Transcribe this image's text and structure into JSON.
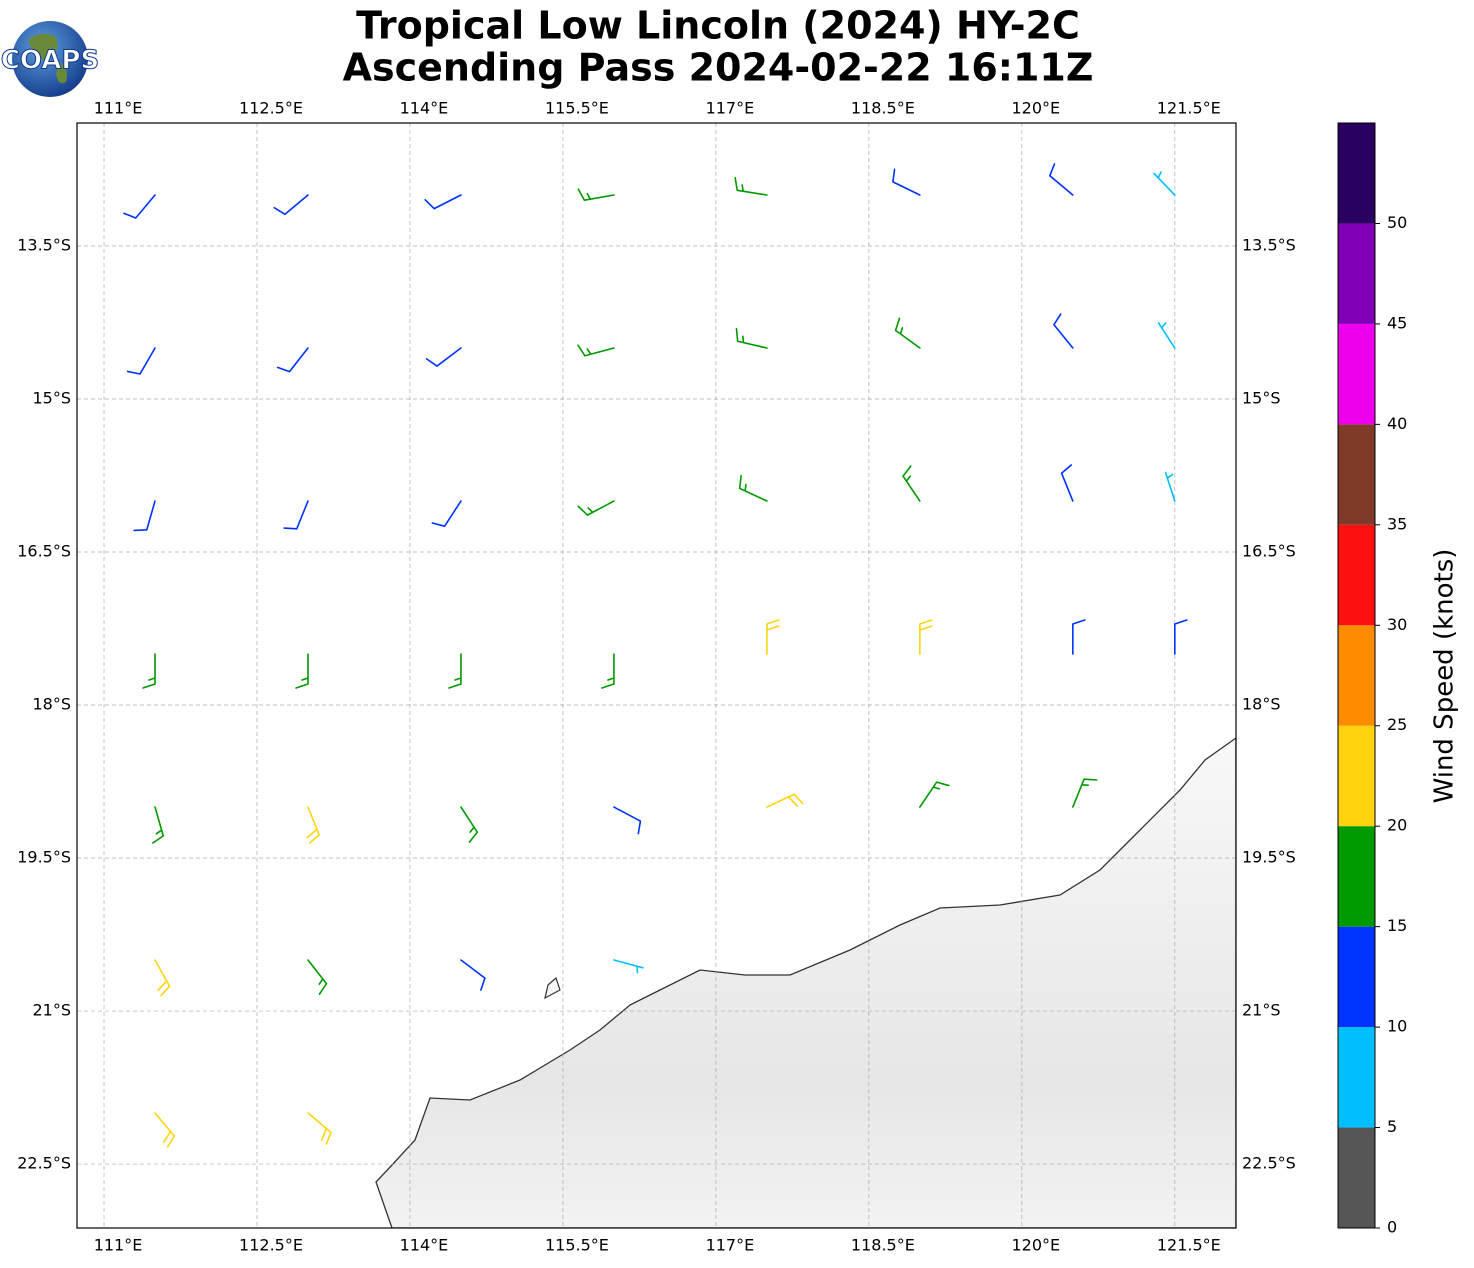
{
  "chart_data": {
    "type": "barbs",
    "title": "Tropical Low Lincoln (2024) HY-2C",
    "subtitle": "Ascending Pass 2024-02-22 16:11Z",
    "logo_text": "COAPS",
    "xlim": [
      110.735,
      122.1
    ],
    "ylim": [
      -23.127,
      -12.294
    ],
    "xticks": [
      {
        "value": 111,
        "label": "111°E"
      },
      {
        "value": 112.5,
        "label": "112.5°E"
      },
      {
        "value": 114,
        "label": "114°E"
      },
      {
        "value": 115.5,
        "label": "115.5°E"
      },
      {
        "value": 117,
        "label": "117°E"
      },
      {
        "value": 118.5,
        "label": "118.5°E"
      },
      {
        "value": 120,
        "label": "120°E"
      },
      {
        "value": 121.5,
        "label": "121.5°E"
      }
    ],
    "yticks": [
      {
        "value": -13.5,
        "label": "13.5°S"
      },
      {
        "value": -15,
        "label": "15°S"
      },
      {
        "value": -16.5,
        "label": "16.5°S"
      },
      {
        "value": -18,
        "label": "18°S"
      },
      {
        "value": -19.5,
        "label": "19.5°S"
      },
      {
        "value": -21,
        "label": "21°S"
      },
      {
        "value": -22.5,
        "label": "22.5°S"
      }
    ],
    "grid": true,
    "lon": [
      111.5,
      113,
      114.5,
      116,
      117.5,
      119,
      120.5,
      121.5,
      111.5,
      113,
      114.5,
      116,
      117.5,
      119,
      120.5,
      121.5,
      111.5,
      113,
      114.5,
      116,
      117.5,
      119,
      120.5,
      121.5,
      111.5,
      113,
      114.5,
      116,
      117.5,
      119,
      120.5,
      121.5,
      111.5,
      113,
      114.5,
      116,
      117.5,
      119,
      120.5,
      111.5,
      113,
      114.5,
      116,
      111.5,
      113
    ],
    "lat": [
      -13,
      -13,
      -13,
      -13,
      -13,
      -13,
      -13,
      -13,
      -14.5,
      -14.5,
      -14.5,
      -14.5,
      -14.5,
      -14.5,
      -14.5,
      -14.5,
      -16,
      -16,
      -16,
      -16,
      -16,
      -16,
      -16,
      -16,
      -17.5,
      -17.5,
      -17.5,
      -17.5,
      -17.5,
      -17.5,
      -17.5,
      -17.5,
      -19,
      -19,
      -19,
      -19,
      -19,
      -19,
      -19,
      -20.5,
      -20.5,
      -20.5,
      -20.5,
      -22,
      -22
    ],
    "speed": [
      10,
      12,
      13,
      16,
      17,
      14,
      13,
      9,
      12,
      13,
      14,
      17,
      17,
      16,
      12,
      8,
      13,
      13,
      13,
      16,
      18,
      16,
      13,
      9,
      16,
      15,
      16,
      18,
      22,
      20,
      14,
      12,
      17,
      20,
      15,
      13,
      22,
      18,
      16,
      22,
      17,
      14,
      8,
      23,
      21
    ],
    "direction": [
      220,
      230,
      243,
      260,
      279,
      296,
      310,
      316,
      210,
      218,
      233,
      255,
      283,
      306,
      321,
      327,
      196,
      202,
      213,
      242,
      295,
      326,
      338,
      342,
      180,
      180,
      180,
      180,
      0,
      0,
      0,
      0,
      164,
      158,
      147,
      118,
      65,
      34,
      22,
      151,
      142,
      127,
      105,
      140,
      130
    ],
    "colorbar": {
      "label": "Wind Speed (knots)",
      "ylim": [
        0,
        55
      ],
      "yticks": [
        0,
        5,
        10,
        15,
        20,
        25,
        30,
        35,
        40,
        45,
        50
      ],
      "colors": [
        "#555555",
        "#00bfff",
        "#0033ff",
        "#009900",
        "#ffd40f",
        "#ff8c00",
        "#ff1010",
        "#7f3a2a",
        "#ee00ee",
        "#8000b8",
        "#2a0060"
      ]
    }
  }
}
